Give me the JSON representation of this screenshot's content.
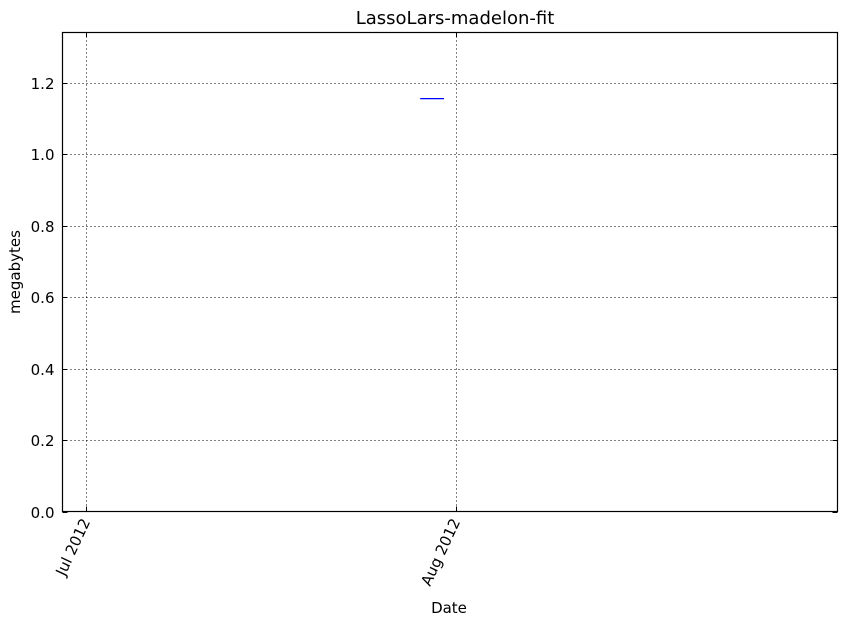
{
  "chart_data": {
    "type": "line",
    "title": "LassoLars-madelon-fit",
    "xlabel": "Date",
    "ylabel": "megabytes",
    "x_type": "date",
    "xlim": [
      "2012-06-29",
      "2012-09-02"
    ],
    "ylim": [
      0,
      1.34
    ],
    "x_ticks": [
      {
        "value": "2012-07-01",
        "label": "Jul 2012"
      },
      {
        "value": "2012-08-01",
        "label": "Aug 2012"
      }
    ],
    "y_ticks": [
      {
        "value": 0.0,
        "label": "0.0"
      },
      {
        "value": 0.2,
        "label": "0.2"
      },
      {
        "value": 0.4,
        "label": "0.4"
      },
      {
        "value": 0.6,
        "label": "0.6"
      },
      {
        "value": 0.8,
        "label": "0.8"
      },
      {
        "value": 1.0,
        "label": "1.0"
      },
      {
        "value": 1.2,
        "label": "1.2"
      }
    ],
    "grid": true,
    "legend": "none",
    "series": [
      {
        "color": "#0000ff",
        "points": [
          {
            "x": "2012-07-29",
            "y": 1.155
          },
          {
            "x": "2012-07-31",
            "y": 1.155
          }
        ]
      }
    ]
  }
}
